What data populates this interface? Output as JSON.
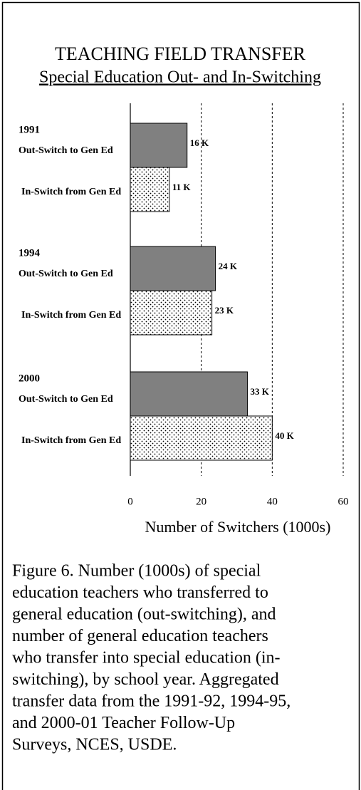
{
  "chart_data": {
    "type": "hbar_grouped",
    "title": "TEACHING FIELD TRANSFER",
    "subtitle": "Special Education Out- and In-Switching",
    "groups": [
      "1991",
      "1994",
      "2000"
    ],
    "series": [
      {
        "name": "Out-Switch to Gen Ed",
        "color": "#808080",
        "values": [
          16,
          24,
          33
        ],
        "value_labels": [
          "16 K",
          "24 K",
          "33 K"
        ]
      },
      {
        "name": "In-Switch from Gen Ed",
        "color": "#ffffff",
        "pattern": "dots",
        "values": [
          11,
          23,
          40
        ],
        "value_labels": [
          "11 K",
          "23 K",
          "40 K"
        ]
      }
    ],
    "xlim": [
      0,
      60
    ],
    "xticks": [
      0,
      20,
      40,
      60
    ],
    "grid": true,
    "xlabel": "Number of Switchers (1000s)",
    "caption_lines": [
      "Figure 6. Number (1000s) of special",
      "education teachers who transferred to",
      "general education (out-switching), and",
      "number of general education teachers",
      "who transfer into special education (in-",
      "switching), by school year. Aggregated",
      "transfer data from the 1991-92, 1994-95,",
      "and 2000-01 Teacher Follow-Up",
      "Surveys, NCES, USDE."
    ]
  }
}
